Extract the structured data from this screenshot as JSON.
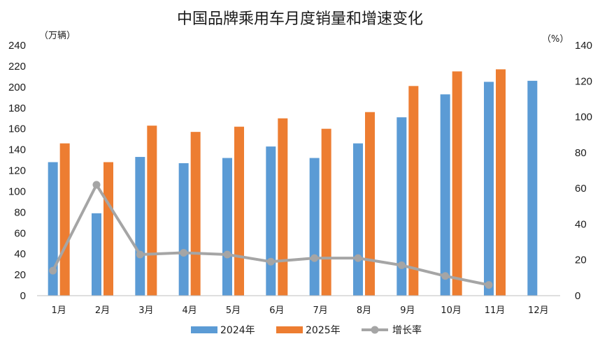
{
  "chart_data": {
    "type": "bar",
    "title": "中国品牌乘用车月度销量和增速变化",
    "y_left_unit": "（万辆）",
    "y_right_unit": "（%）",
    "categories": [
      "1月",
      "2月",
      "3月",
      "4月",
      "5月",
      "6月",
      "7月",
      "8月",
      "9月",
      "10月",
      "11月",
      "12月"
    ],
    "series": [
      {
        "name": "2024年",
        "type": "bar",
        "axis": "left",
        "color": "#5b9bd5",
        "values": [
          128,
          79,
          133,
          127,
          132,
          143,
          132,
          146,
          171,
          193,
          205,
          206
        ]
      },
      {
        "name": "2025年",
        "type": "bar",
        "axis": "left",
        "color": "#ed7d31",
        "values": [
          146,
          128,
          163,
          157,
          162,
          170,
          160,
          176,
          201,
          215,
          217,
          null
        ]
      },
      {
        "name": "增长率",
        "type": "line",
        "axis": "right",
        "color": "#a5a5a5",
        "values": [
          14,
          62,
          23,
          24,
          23,
          19,
          21,
          21,
          17,
          11,
          6,
          null
        ]
      }
    ],
    "y_left": {
      "min": 0,
      "max": 240,
      "step": 20
    },
    "y_right": {
      "min": 0,
      "max": 140,
      "step": 20
    },
    "grid": false,
    "legend_position": "bottom"
  }
}
